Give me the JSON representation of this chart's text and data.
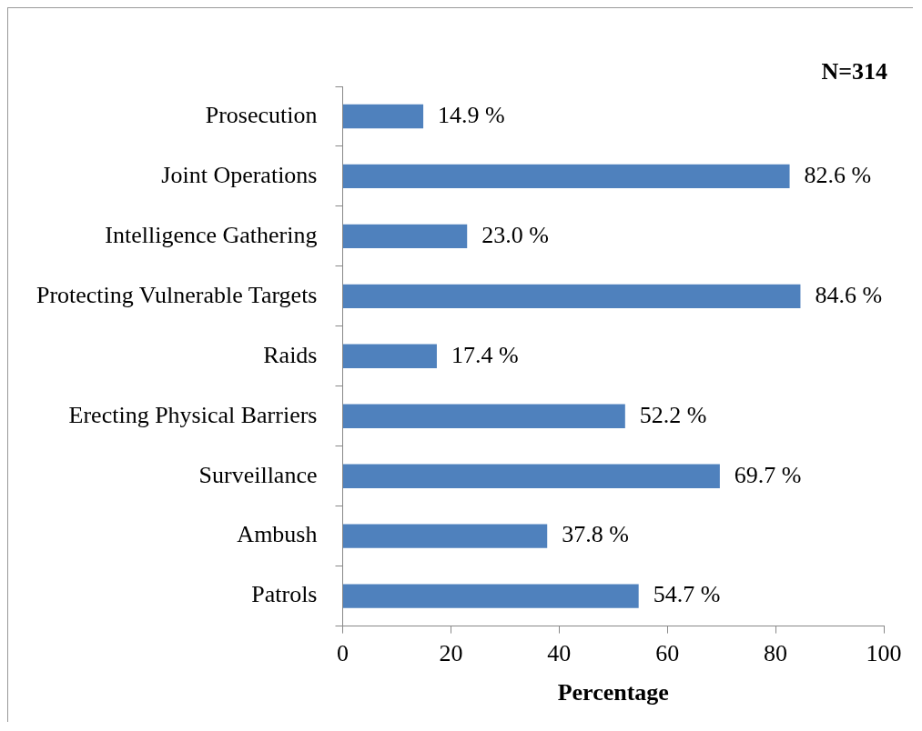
{
  "chart_data": {
    "type": "bar",
    "orientation": "horizontal",
    "xlabel": "Percentage",
    "categories": [
      "Prosecution",
      "Joint Operations",
      "Intelligence Gathering",
      "Protecting Vulnerable Targets",
      "Raids",
      "Erecting Physical Barriers",
      "Surveillance",
      "Ambush",
      "Patrols"
    ],
    "values": [
      14.9,
      82.6,
      23.0,
      84.6,
      17.4,
      52.2,
      69.7,
      37.8,
      54.7
    ],
    "value_labels": [
      "14.9 %",
      "82.6 %",
      "23.0 %",
      "84.6 %",
      "17.4 %",
      "52.2 %",
      "69.7 %",
      "37.8 %",
      "54.7 %"
    ],
    "color": "#4f81bd",
    "xlim": [
      0,
      100
    ],
    "xticks": [
      0,
      20,
      40,
      60,
      80,
      100
    ],
    "annotations": [
      "N=314"
    ]
  }
}
